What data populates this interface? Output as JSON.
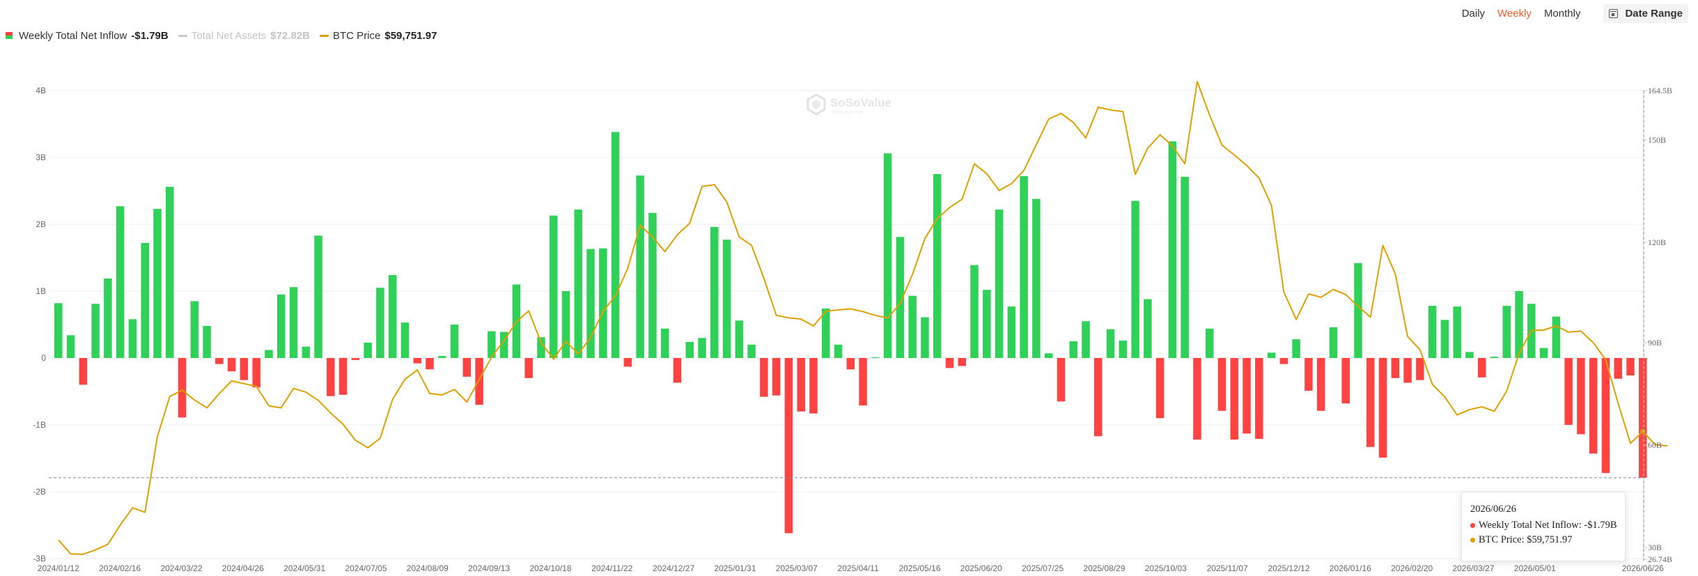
{
  "legend": {
    "inflow": {
      "label": "Weekly Total Net Inflow",
      "value": "-$1.79B"
    },
    "assets": {
      "label": "Total Net Assets",
      "value": "$72.82B"
    },
    "btc": {
      "label": "BTC Price",
      "value": "$59,751.97"
    }
  },
  "controls": {
    "daily": "Daily",
    "weekly": "Weekly",
    "monthly": "Monthly",
    "active": "weekly",
    "date_range": "Date Range"
  },
  "watermark": {
    "name": "SoSoValue",
    "sub": "sosovalue.com"
  },
  "tooltip": {
    "date": "2026/06/26",
    "inflow_label": "Weekly Total Net Inflow:",
    "inflow_value": "-$1.79B",
    "btc_label": "BTC Price:",
    "btc_value": "$59,751.97"
  },
  "colors": {
    "positive": "#2fd158",
    "negative": "#ff4242",
    "btc": "#e0a000",
    "assets": "#c8c8c8",
    "accent": "#ff5a2c"
  },
  "chart_data": {
    "type": "bar",
    "left_axis": {
      "ticks": [
        "4B",
        "3B",
        "2B",
        "1B",
        "0",
        "-1B",
        "-2B",
        "-3B"
      ],
      "range": [
        -3,
        4
      ],
      "unit": "B"
    },
    "right_axis": {
      "ticks": [
        "164.5B",
        "150B",
        "120B",
        "90B",
        "60B",
        "30B",
        "26.74B"
      ],
      "range": [
        26.74,
        164.5
      ],
      "note": "BTC price axis tick values as printed"
    },
    "x_labels": [
      "2024/01/12",
      "2024/02/16",
      "2024/03/22",
      "2024/04/26",
      "2024/05/31",
      "2024/07/05",
      "2024/08/09",
      "2024/09/13",
      "2024/10/18",
      "2024/11/22",
      "2024/12/27",
      "2025/01/31",
      "2025/03/07",
      "2025/04/11",
      "2025/05/16",
      "2025/06/20",
      "2025/07/25",
      "2025/08/29",
      "2025/10/03",
      "2025/11/07",
      "2025/12/12",
      "2026/01/16",
      "2026/02/20",
      "2026/03/27",
      "2026/05/01",
      "2026/06/26"
    ],
    "weeks_first": "2024/01/12",
    "weeks_last": "2026/06/26",
    "reference_line": -1.79,
    "series": [
      {
        "name": "Weekly Total Net Inflow",
        "unit": "B",
        "values": [
          0.82,
          0.34,
          -0.4,
          0.81,
          1.19,
          2.27,
          0.58,
          1.72,
          2.23,
          2.56,
          -0.89,
          0.85,
          0.48,
          -0.09,
          -0.2,
          -0.33,
          -0.44,
          0.12,
          0.95,
          1.06,
          0.17,
          1.83,
          -0.57,
          -0.55,
          -0.03,
          0.23,
          1.05,
          1.24,
          0.53,
          -0.08,
          -0.17,
          0.03,
          0.5,
          -0.28,
          -0.7,
          0.4,
          0.39,
          1.1,
          -0.3,
          0.31,
          2.13,
          1.0,
          2.22,
          1.63,
          1.64,
          3.38,
          -0.13,
          2.73,
          2.17,
          0.44,
          -0.37,
          0.24,
          0.3,
          1.96,
          1.77,
          0.56,
          0.2,
          -0.58,
          -0.56,
          -2.62,
          -0.8,
          -0.83,
          0.74,
          0.2,
          -0.17,
          -0.71,
          0.01,
          3.06,
          1.81,
          0.93,
          0.61,
          2.75,
          -0.15,
          -0.12,
          1.39,
          1.02,
          2.22,
          0.77,
          2.72,
          2.38,
          0.07,
          -0.65,
          0.25,
          0.55,
          -1.17,
          0.43,
          0.26,
          2.35,
          0.88,
          -0.9,
          3.24,
          2.71,
          -1.22,
          0.44,
          -0.79,
          -1.22,
          -1.13,
          -1.21,
          0.08,
          -0.09,
          0.28,
          -0.49,
          -0.79,
          0.46,
          -0.68,
          1.42,
          -1.33,
          -1.49,
          -0.3,
          -0.37,
          -0.33,
          0.78,
          0.57,
          0.77,
          0.09,
          -0.29,
          0.02,
          0.78,
          1.0,
          0.81,
          0.15,
          0.62,
          -1.0,
          -1.14,
          -1.43,
          -1.72,
          -0.31,
          -0.26,
          -1.79
        ]
      },
      {
        "name": "BTC Price",
        "unit": "B",
        "values": [
          32.2,
          28.1,
          28.0,
          29.3,
          30.9,
          36.6,
          41.6,
          40.3,
          62.5,
          74.2,
          76.1,
          73.2,
          70.9,
          75.1,
          78.8,
          78.0,
          77.2,
          71.5,
          70.9,
          76.6,
          75.5,
          73.1,
          69.4,
          66.1,
          61.4,
          59.2,
          62.0,
          73.4,
          79.3,
          82.0,
          75.1,
          74.7,
          76.3,
          72.6,
          79.2,
          85.8,
          90.6,
          96.1,
          99.3,
          90.0,
          85.2,
          90.4,
          86.7,
          91.5,
          99.2,
          103.7,
          111.8,
          124.4,
          121.0,
          116.7,
          121.6,
          125.0,
          135.8,
          136.3,
          131.2,
          121.0,
          118.5,
          108.8,
          98.0,
          97.3,
          96.9,
          94.9,
          99.2,
          99.6,
          99.9,
          99.1,
          98.0,
          97.2,
          101.5,
          110.0,
          120.5,
          126.4,
          129.6,
          132.0,
          142.4,
          139.5,
          134.6,
          136.6,
          140.5,
          148.0,
          155.5,
          157.2,
          154.5,
          150.0,
          159.0,
          158.2,
          157.7,
          139.3,
          147.0,
          150.9,
          147.7,
          142.4,
          166.5,
          156.7,
          147.9,
          145.0,
          141.9,
          138.2,
          130.2,
          104.8,
          96.8,
          104.3,
          103.3,
          105.6,
          104.1,
          100.6,
          97.5,
          118.5,
          110.2,
          91.8,
          87.9,
          77.8,
          74.1,
          68.8,
          70.4,
          71.2,
          69.9,
          75.8,
          86.8,
          93.6,
          93.7,
          94.9,
          93.1,
          93.4,
          90.0,
          85.0,
          72.3,
          60.5,
          64.0,
          60.1,
          59.75
        ]
      }
    ]
  }
}
